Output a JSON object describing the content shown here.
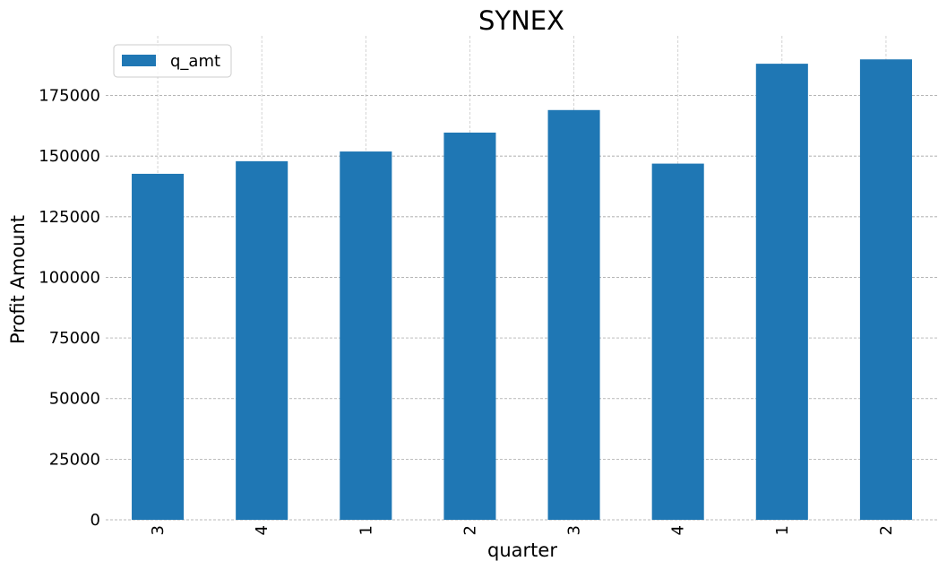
{
  "chart_data": {
    "type": "bar",
    "title": "SYNEX",
    "xlabel": "quarter",
    "ylabel": "Profit Amount",
    "categories": [
      "3",
      "4",
      "1",
      "2",
      "3",
      "4",
      "1",
      "2"
    ],
    "series": [
      {
        "name": "q_amt",
        "values": [
          142700,
          147900,
          151900,
          159700,
          169000,
          146900,
          188100,
          189900
        ]
      }
    ],
    "ylim": [
      0,
      200000
    ],
    "yticks": [
      0,
      25000,
      50000,
      75000,
      100000,
      125000,
      150000,
      175000
    ],
    "ytick_labels": [
      "0",
      "25000",
      "50000",
      "75000",
      "100000",
      "125000",
      "150000",
      "175000"
    ],
    "grid": true,
    "legend_position": "top-left",
    "colors": {
      "bar": "#1f77b4"
    }
  }
}
